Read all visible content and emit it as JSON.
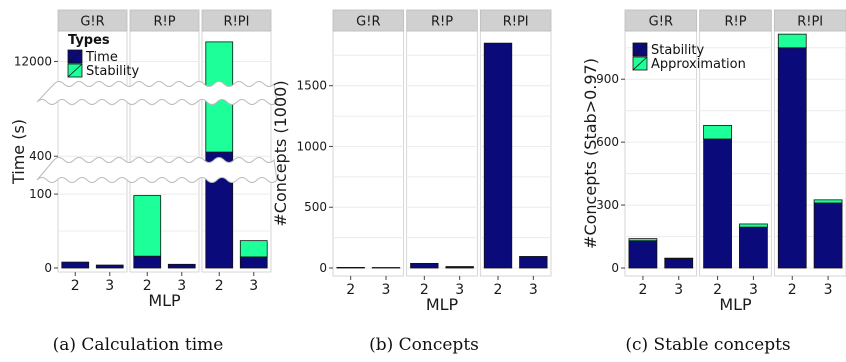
{
  "colors": {
    "primary": "#0a0a7a",
    "secondary": "#1dff99",
    "strip": "#d0d0d0",
    "grid": "#ececec"
  },
  "chart_data": [
    {
      "type": "bar",
      "stacked": true,
      "facets": [
        "G!R",
        "R!P",
        "R!PI"
      ],
      "categories": [
        "2",
        "3"
      ],
      "xlabel": "MLP",
      "ylabel": "Time (s)",
      "y_axis": "broken",
      "y_ticks": [
        0,
        100,
        400,
        12000
      ],
      "legend": {
        "title": "Types",
        "entries": [
          "Time",
          "Stability"
        ],
        "placement": "top-left"
      },
      "series": [
        {
          "name": "Time",
          "values": {
            "G!R": [
              8,
              4
            ],
            "R!P": [
              16,
              5
            ],
            "R!PI": [
              420,
              15
            ]
          }
        },
        {
          "name": "Stability",
          "values": {
            "G!R": [
              0,
              0
            ],
            "R!P": [
              82,
              0
            ],
            "R!PI": [
              11900,
              22
            ]
          }
        }
      ],
      "caption": "(a) Calculation time"
    },
    {
      "type": "bar",
      "facets": [
        "G!R",
        "R!P",
        "R!PI"
      ],
      "categories": [
        "2",
        "3"
      ],
      "xlabel": "MLP",
      "ylabel": "#Concepts (1000)",
      "ylim": [
        0,
        1950
      ],
      "y_ticks": [
        0,
        500,
        1000,
        1500
      ],
      "series": [
        {
          "values": {
            "G!R": [
              5,
              4
            ],
            "R!P": [
              38,
              12
            ],
            "R!PI": [
              1850,
              95
            ]
          }
        }
      ],
      "caption": "(b) Concepts"
    },
    {
      "type": "bar",
      "stacked": true,
      "facets": [
        "G!R",
        "R!P",
        "R!PI"
      ],
      "categories": [
        "2",
        "3"
      ],
      "xlabel": "MLP",
      "ylabel": "#Concepts (Stab>0.97)",
      "ylim": [
        0,
        1130
      ],
      "y_ticks": [
        0,
        300,
        600,
        900
      ],
      "legend": {
        "entries": [
          "Stability",
          "Approximation"
        ],
        "placement": "top-left"
      },
      "series": [
        {
          "name": "Stability",
          "values": {
            "G!R": [
              130,
              45
            ],
            "R!P": [
              615,
              195
            ],
            "R!PI": [
              1050,
              310
            ]
          }
        },
        {
          "name": "Approximation",
          "values": {
            "G!R": [
              10,
              2
            ],
            "R!P": [
              65,
              15
            ],
            "R!PI": [
              65,
              15
            ]
          }
        }
      ],
      "caption": "(c) Stable concepts"
    }
  ]
}
